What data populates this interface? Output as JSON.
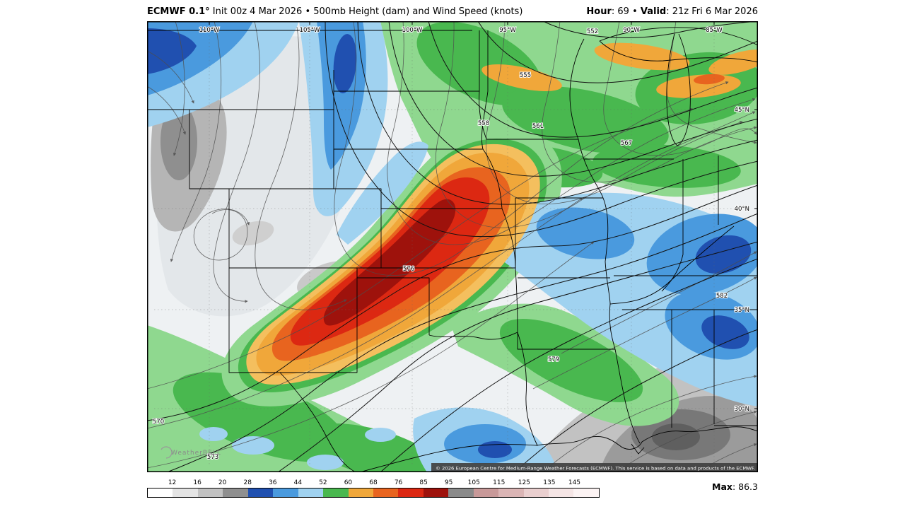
{
  "header": {
    "model": "ECMWF 0.1°",
    "subtitle": " Init 00z 4 Mar 2026 • 500mb Height (dam) and Wind Speed (knots)",
    "hour_label": "Hour",
    "hour_sep": ": ",
    "hour_value": "69",
    "mid_sep": " • ",
    "valid_label": "Valid",
    "valid_sep": ": ",
    "valid_value": "21z Fri 6 Mar 2026"
  },
  "map": {
    "lon_labels": [
      "110°W",
      "105°W",
      "100°W",
      "95°W",
      "90°W",
      "85°W"
    ],
    "lat_labels": [
      "45°N",
      "40°N",
      "35°N",
      "30°N"
    ],
    "contour_labels": [
      "552",
      "555",
      "558",
      "561",
      "567",
      "570",
      "573",
      "576",
      "579",
      "582"
    ],
    "watermark": "WeatherBELL",
    "copyright": "© 2026 European Centre for Medium-Range Weather Forecasts (ECMWF). This service is based on data and products of the ECMWF."
  },
  "legend": {
    "ticks": [
      "12",
      "16",
      "20",
      "28",
      "36",
      "44",
      "52",
      "60",
      "68",
      "76",
      "85",
      "95",
      "105",
      "115",
      "125",
      "135",
      "145"
    ],
    "colors": [
      "#ffffff",
      "#e4e4e4",
      "#c2c2c2",
      "#8f8f8f",
      "#2050b0",
      "#4a9ade",
      "#a0d2f0",
      "#49b84f",
      "#f0a73a",
      "#e8641f",
      "#dc2812",
      "#9e120c",
      "#8a8a8a",
      "#c89999",
      "#dbb5b5",
      "#eacfcf",
      "#f5e5e5",
      "#fcf3f3"
    ],
    "max_label": "Max",
    "max_sep": ": ",
    "max_value": "86.3"
  },
  "chart_data": {
    "type": "heatmap",
    "title": "ECMWF 0.1° 500mb Height (dam) and Wind Speed (knots), Hour 69, Valid 21z Fri 6 Mar 2026",
    "wind_speed_scale_knots": [
      12,
      16,
      20,
      28,
      36,
      44,
      52,
      60,
      68,
      76,
      85,
      95,
      105,
      115,
      125,
      135,
      145
    ],
    "height_contours_dam": [
      552,
      555,
      558,
      561,
      567,
      570,
      573,
      576,
      579,
      582
    ],
    "max_wind_knots": 86.3,
    "lon_gridlines": [
      "110°W",
      "105°W",
      "100°W",
      "95°W",
      "90°W",
      "85°W"
    ],
    "lat_gridlines": [
      "45°N",
      "40°N",
      "35°N",
      "30°N"
    ],
    "legend_position": "bottom"
  }
}
